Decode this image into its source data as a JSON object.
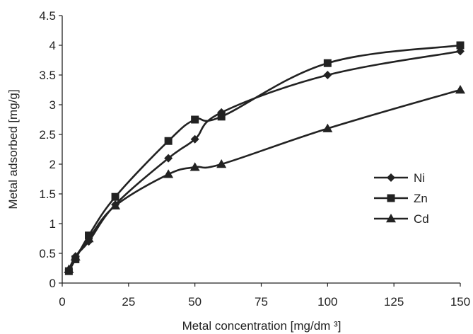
{
  "chart_data": {
    "type": "line",
    "title": "",
    "xlabel": "Metal concentration [mg/dm ³]",
    "ylabel": "Metal adsorbed [mg/g]",
    "xlim": [
      0,
      150
    ],
    "ylim": [
      0,
      4.5
    ],
    "x_ticks": [
      "0",
      "25",
      "50",
      "75",
      "100",
      "125",
      "150"
    ],
    "y_ticks": [
      "0",
      "0.5",
      "1",
      "1.5",
      "2",
      "2.5",
      "3",
      "3.5",
      "4",
      "4.5"
    ],
    "grid": false,
    "legend_position": "right",
    "series": [
      {
        "name": "Ni",
        "marker": "diamond",
        "color": "#222222",
        "points": [
          [
            2.5,
            0.22
          ],
          [
            5,
            0.45
          ],
          [
            10,
            0.7
          ],
          [
            20,
            1.32
          ],
          [
            40,
            2.1
          ],
          [
            50,
            2.42
          ],
          [
            60,
            2.87
          ],
          [
            100,
            3.5
          ],
          [
            150,
            3.9
          ]
        ]
      },
      {
        "name": "Zn",
        "marker": "square",
        "color": "#222222",
        "points": [
          [
            2.5,
            0.2
          ],
          [
            5,
            0.4
          ],
          [
            10,
            0.8
          ],
          [
            20,
            1.45
          ],
          [
            40,
            2.39
          ],
          [
            50,
            2.75
          ],
          [
            60,
            2.8
          ],
          [
            100,
            3.7
          ],
          [
            150,
            4.0
          ]
        ]
      },
      {
        "name": "Cd",
        "marker": "triangle",
        "color": "#222222",
        "points": [
          [
            2.5,
            0.23
          ],
          [
            5,
            0.44
          ],
          [
            10,
            0.75
          ],
          [
            20,
            1.3
          ],
          [
            40,
            1.83
          ],
          [
            50,
            1.95
          ],
          [
            60,
            2.0
          ],
          [
            100,
            2.6
          ],
          [
            150,
            3.25
          ]
        ]
      }
    ]
  }
}
